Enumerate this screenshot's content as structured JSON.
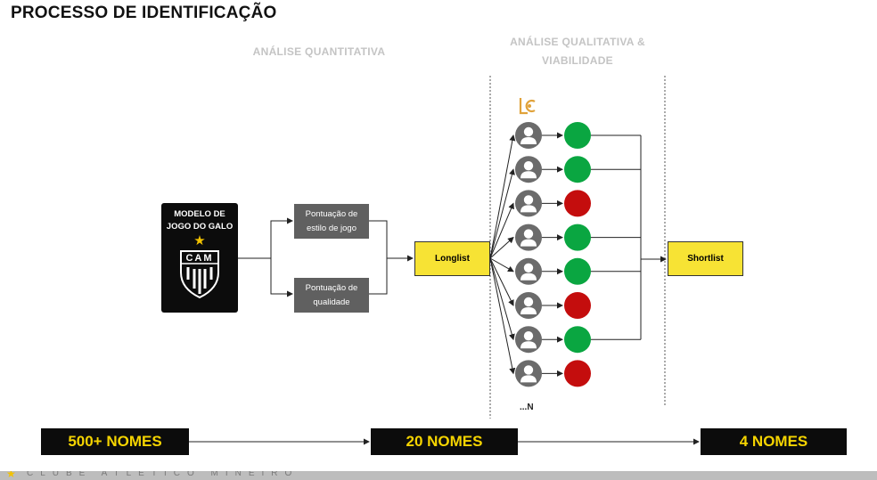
{
  "title": "PROCESSO DE IDENTIFICAÇÃO",
  "sections": {
    "quantitative": "ANÁLISE QUANTITATIVA",
    "qualitative_line1": "ANÁLISE QUALITATIVA &",
    "qualitative_line2": "VIABILIDADE"
  },
  "model": {
    "line1": "MODELO DE",
    "line2": "JOGO DO GALO",
    "crest_text": "CAM"
  },
  "scores": {
    "style_line1": "Pontuação de",
    "style_line2": "estilo de jogo",
    "quality_line1": "Pontuação de",
    "quality_line2": "qualidade"
  },
  "longlist_label": "Longlist",
  "shortlist_label": "Shortlist",
  "players": [
    {
      "status": "approved"
    },
    {
      "status": "approved"
    },
    {
      "status": "rejected"
    },
    {
      "status": "approved"
    },
    {
      "status": "approved"
    },
    {
      "status": "rejected"
    },
    {
      "status": "approved"
    },
    {
      "status": "rejected"
    }
  ],
  "more_label": "...N",
  "status_colors": {
    "approved": "#0aa641",
    "rejected": "#c40d0d"
  },
  "funnel": {
    "start": "500+ NOMES",
    "middle": "20 NOMES",
    "end": "4 NOMES"
  },
  "footer_text": "CLUBE ATLÉTICO MINEIRO",
  "icons": {
    "logo": "lc-logo-icon",
    "player": "user-icon",
    "crest": "crest-icon",
    "star": "star-icon"
  }
}
